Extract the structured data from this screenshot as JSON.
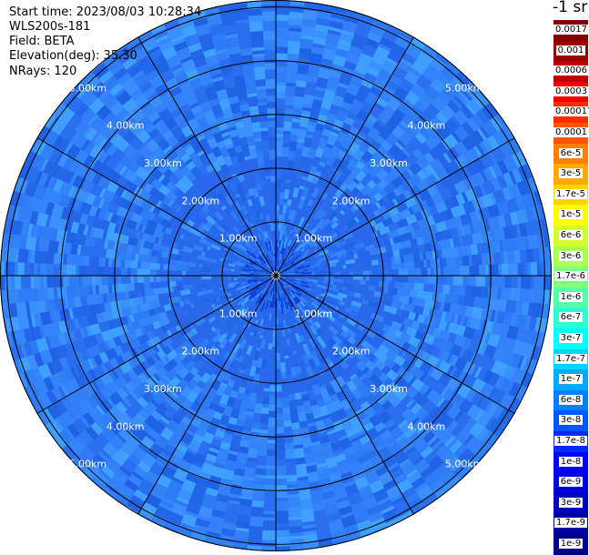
{
  "info": {
    "start_time": "Start time: 2023/08/03 10:28:34",
    "instrument": "WLS200s-181",
    "field": "Field: BETA",
    "elevation": "Elevation(deg): 35.30",
    "nrays": "NRays: 120"
  },
  "chart_data": {
    "type": "ppi",
    "field": "BETA",
    "nrays": 120,
    "range_rings_km": [
      1,
      2,
      3,
      4,
      5
    ],
    "ring_labels": [
      "1.00km",
      "2.00km",
      "3.00km",
      "4.00km",
      "5.00km"
    ],
    "max_range_km": 5.13,
    "spoke_angles_deg": [
      0,
      30,
      60,
      90,
      120,
      150,
      180,
      210,
      240,
      270,
      300,
      330
    ],
    "colorbar": {
      "title": "-1 sr",
      "labels": [
        "0.0017",
        "0.001",
        "0.0006",
        "0.0003",
        "0.00017",
        "0.0001",
        "6e-5",
        "3e-5",
        "1.7e-5",
        "1e-5",
        "6e-6",
        "3e-6",
        "1.7e-6",
        "1e-6",
        "6e-7",
        "3e-7",
        "1.7e-7",
        "1e-7",
        "6e-8",
        "3e-8",
        "1.7e-8",
        "1e-8",
        "6e-9",
        "3e-9",
        "1.7e-9",
        "1e-9"
      ],
      "colors": [
        "#800000",
        "#9a0000",
        "#c00000",
        "#ee0000",
        "#ff2a00",
        "#ff5500",
        "#ff8000",
        "#ffaa00",
        "#ffd400",
        "#ffff00",
        "#d4ff2a",
        "#aaff55",
        "#80ff80",
        "#55ffaa",
        "#2affd4",
        "#00ffff",
        "#00d4ff",
        "#00aaff",
        "#0080ff",
        "#0055ff",
        "#002aff",
        "#0000ff",
        "#0000e0",
        "#0000c0",
        "#0000a0",
        "#000080"
      ]
    },
    "dominant_value_range": [
      "1.7e-8",
      "1e-8"
    ]
  },
  "colors": {
    "field_base": "#2f7bf6",
    "field_light": "#3fa0ff",
    "field_dark": "#1e5fe8",
    "grid": "#000000"
  }
}
